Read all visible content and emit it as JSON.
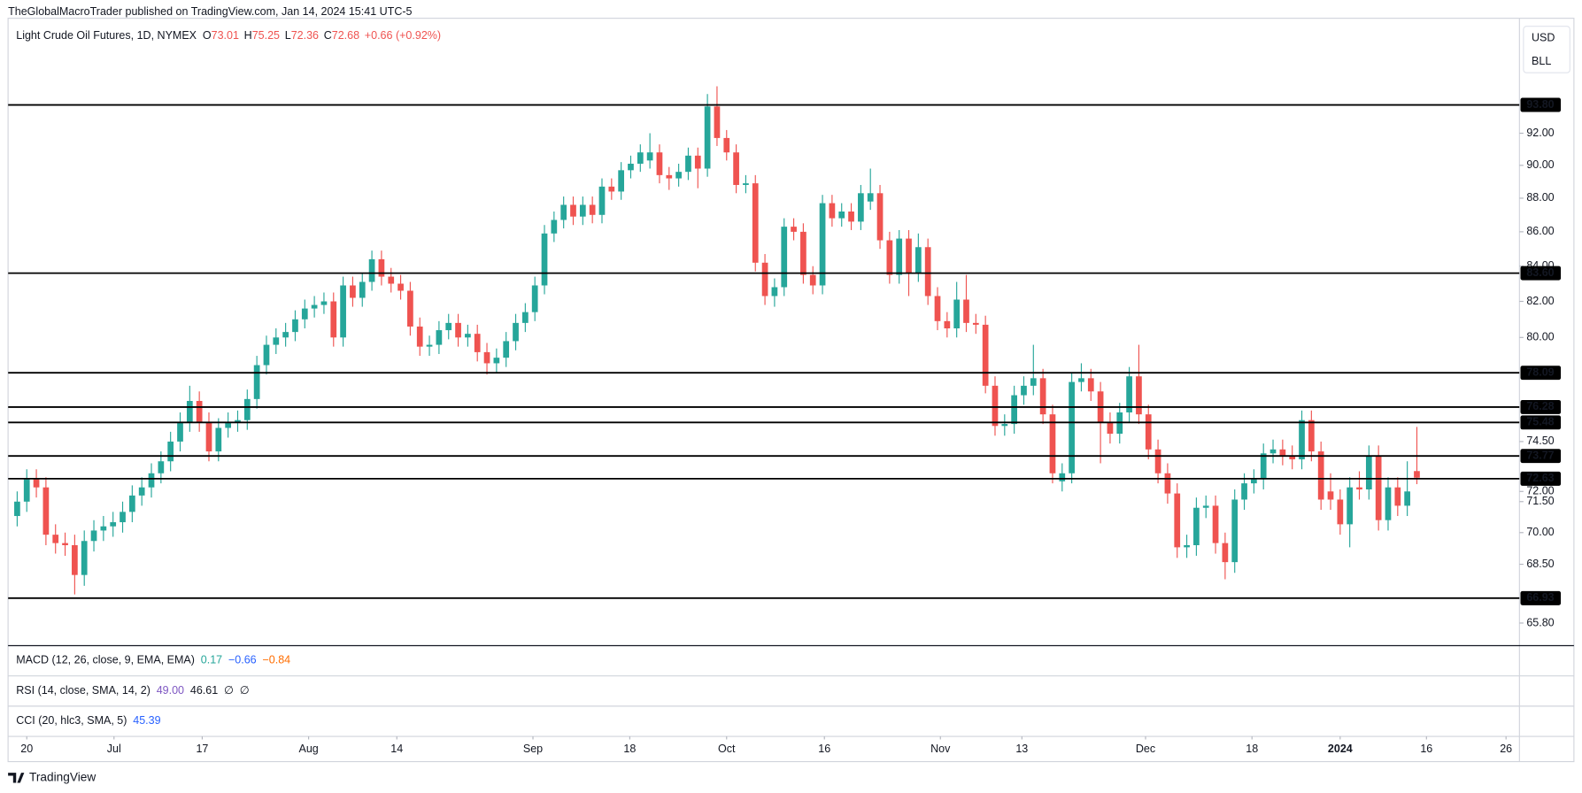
{
  "header": "TheGlobalMacroTrader published on TradingView.com, Jan 14, 2024 15:41 UTC-5",
  "legend": {
    "symbol": "Light Crude Oil Futures, 1D, NYMEX",
    "ohlc": [
      {
        "key": "O",
        "value": "73.01"
      },
      {
        "key": "H",
        "value": "75.25"
      },
      {
        "key": "L",
        "value": "72.36"
      },
      {
        "key": "C",
        "value": "72.68"
      }
    ],
    "change": "+0.66 (+0.92%)"
  },
  "axis_buttons": [
    "USD",
    "BLL"
  ],
  "indicators": [
    {
      "name": "MACD (12, 26, close, 9, EMA, EMA)",
      "values": [
        {
          "text": "0.17",
          "color": "#26a69a"
        },
        {
          "text": "−0.66",
          "color": "#2962ff"
        },
        {
          "text": "−0.84",
          "color": "#ff6d00"
        }
      ]
    },
    {
      "name": "RSI (14, close, SMA, 14, 2)",
      "values": [
        {
          "text": "49.00",
          "color": "#7e57c2"
        },
        {
          "text": "46.61",
          "color": "#131722"
        },
        {
          "text": "∅",
          "color": "#131722"
        },
        {
          "text": "∅",
          "color": "#131722"
        }
      ]
    },
    {
      "name": "CCI (20, hlc3, SMA, 5)",
      "values": [
        {
          "text": "45.39",
          "color": "#2962ff"
        }
      ]
    }
  ],
  "footer": "TradingView",
  "chart_data": {
    "type": "candlestick",
    "log_scale": true,
    "up_color": "#26a69a",
    "down_color": "#ef5350",
    "line_color": "#000000",
    "xlim": [
      -0.95,
      156.7
    ],
    "xticks": [
      {
        "value": 1,
        "label": "20"
      },
      {
        "value": 10.1,
        "label": "Jul"
      },
      {
        "value": 19.3,
        "label": "17"
      },
      {
        "value": 30.4,
        "label": "Aug"
      },
      {
        "value": 39.6,
        "label": "14"
      },
      {
        "value": 53.8,
        "label": "Sep"
      },
      {
        "value": 63.9,
        "label": "18"
      },
      {
        "value": 74,
        "label": "Oct"
      },
      {
        "value": 84.2,
        "label": "16"
      },
      {
        "value": 96.3,
        "label": "Nov"
      },
      {
        "value": 104.8,
        "label": "13"
      },
      {
        "value": 117.7,
        "label": "Dec"
      },
      {
        "value": 128.8,
        "label": "18"
      },
      {
        "value": 138,
        "label": "2024"
      },
      {
        "value": 147,
        "label": "16"
      },
      {
        "value": 155.3,
        "label": "26"
      }
    ],
    "ylim": [
      64.79,
      99.53
    ],
    "yticks": [
      {
        "value": 65.8,
        "label": "65.80"
      },
      {
        "value": 68.5,
        "label": "68.50"
      },
      {
        "value": 70,
        "label": "70.00"
      },
      {
        "value": 71.5,
        "label": "71.50"
      },
      {
        "value": 72,
        "label": "72.00"
      },
      {
        "value": 74.5,
        "label": "74.50"
      },
      {
        "value": 80,
        "label": "80.00"
      },
      {
        "value": 82,
        "label": "82.00"
      },
      {
        "value": 84,
        "label": "84.00"
      },
      {
        "value": 86,
        "label": "86.00"
      },
      {
        "value": 88,
        "label": "88.00"
      },
      {
        "value": 90,
        "label": "90.00"
      },
      {
        "value": 92,
        "label": "92.00"
      }
    ],
    "hlines": [
      {
        "value": 93.8,
        "label": "93.80"
      },
      {
        "value": 83.6,
        "label": "83.60"
      },
      {
        "value": 78.09,
        "label": "78.09"
      },
      {
        "value": 76.28,
        "label": "76.28"
      },
      {
        "value": 75.48,
        "label": "75.48"
      },
      {
        "value": 73.77,
        "label": "73.77"
      },
      {
        "value": 72.63,
        "label": "72.63"
      },
      {
        "value": 66.93,
        "label": "66.93"
      }
    ],
    "open": [
      70.8,
      71.5,
      72.6,
      72.2,
      69.9,
      69.5,
      69.4,
      68.0,
      69.6,
      70.1,
      70.3,
      70.5,
      71.0,
      71.8,
      72.2,
      72.9,
      73.5,
      74.5,
      75.5,
      76.6,
      75.5,
      74.0,
      75.2,
      75.5,
      75.6,
      76.7,
      78.5,
      79.6,
      80.0,
      80.3,
      81.0,
      81.6,
      81.8,
      82.0,
      80.0,
      82.9,
      82.2,
      83.1,
      84.4,
      83.4,
      83.0,
      82.6,
      80.6,
      79.5,
      79.6,
      80.4,
      80.8,
      80.0,
      80.2,
      79.2,
      78.6,
      78.9,
      79.8,
      80.8,
      81.4,
      82.9,
      85.9,
      86.7,
      87.6,
      86.9,
      87.6,
      87.0,
      88.7,
      88.4,
      89.7,
      90.1,
      90.3,
      90.8,
      89.4,
      89.2,
      89.6,
      90.6,
      89.8,
      93.7,
      91.7,
      90.8,
      88.8,
      88.9,
      84.2,
      82.3,
      82.8,
      86.3,
      86.0,
      83.5,
      82.9,
      87.7,
      86.8,
      87.2,
      86.6,
      87.8,
      88.3,
      85.5,
      83.5,
      85.6,
      83.6,
      85.1,
      82.3,
      80.9,
      80.5,
      82.1,
      80.8,
      80.7,
      77.4,
      75.3,
      75.4,
      76.9,
      77.4,
      77.8,
      75.9,
      72.5,
      72.9,
      77.6,
      77.8,
      77.1,
      75.5,
      74.9,
      76.0,
      77.9,
      75.9,
      74.1,
      72.9,
      71.9,
      69.3,
      69.4,
      71.2,
      71.3,
      69.5,
      68.6,
      71.6,
      72.4,
      72.6,
      73.9,
      74.1,
      73.8,
      73.6,
      75.6,
      74.0,
      72.0,
      71.6,
      70.4,
      72.2,
      72.1,
      73.8,
      70.6,
      72.2,
      71.3,
      73.01
    ],
    "high": [
      72.0,
      73.1,
      73.1,
      72.7,
      70.4,
      70.0,
      69.9,
      70.1,
      70.6,
      70.8,
      71.0,
      71.5,
      72.3,
      72.7,
      73.4,
      74.0,
      75.0,
      76.0,
      77.4,
      77.1,
      76.0,
      75.7,
      76.0,
      76.1,
      77.2,
      79.0,
      80.1,
      80.5,
      80.8,
      81.5,
      82.1,
      82.3,
      82.5,
      82.5,
      83.4,
      83.4,
      83.6,
      84.9,
      84.9,
      83.9,
      83.5,
      83.1,
      81.1,
      80.1,
      80.9,
      81.3,
      81.3,
      80.7,
      80.7,
      79.7,
      79.4,
      80.3,
      81.3,
      81.9,
      83.4,
      86.4,
      87.2,
      88.1,
      88.1,
      88.1,
      88.1,
      89.2,
      89.2,
      90.2,
      90.6,
      91.3,
      92.0,
      91.3,
      89.9,
      90.1,
      91.1,
      91.1,
      94.5,
      95.0,
      92.2,
      91.3,
      89.4,
      89.4,
      84.7,
      83.3,
      86.8,
      86.8,
      86.5,
      84.0,
      88.2,
      88.2,
      87.7,
      87.7,
      88.8,
      89.8,
      88.8,
      86.0,
      86.1,
      86.1,
      85.9,
      85.6,
      82.8,
      81.4,
      83.1,
      83.5,
      81.3,
      81.2,
      77.9,
      75.9,
      77.4,
      77.9,
      79.6,
      78.3,
      76.4,
      73.4,
      78.1,
      78.6,
      78.3,
      77.6,
      76.0,
      76.5,
      78.4,
      79.6,
      76.4,
      74.6,
      73.4,
      72.4,
      69.9,
      71.7,
      71.8,
      71.8,
      70.0,
      72.1,
      72.9,
      73.1,
      74.4,
      74.6,
      74.6,
      74.3,
      76.1,
      76.1,
      74.5,
      72.9,
      72.1,
      72.7,
      73.0,
      74.3,
      74.3,
      72.7,
      72.7,
      73.5,
      75.25
    ],
    "low": [
      70.3,
      71.0,
      71.7,
      69.4,
      69.0,
      68.9,
      67.1,
      67.5,
      69.1,
      69.6,
      69.8,
      70.0,
      70.5,
      71.3,
      71.7,
      72.4,
      73.0,
      74.0,
      75.0,
      75.0,
      73.5,
      73.5,
      74.7,
      75.0,
      75.1,
      76.2,
      78.0,
      79.1,
      79.5,
      79.8,
      80.5,
      81.1,
      81.3,
      79.5,
      79.5,
      81.7,
      81.7,
      82.6,
      82.9,
      82.5,
      82.1,
      80.1,
      79.0,
      79.0,
      79.1,
      79.9,
      79.5,
      79.5,
      78.7,
      78.0,
      78.1,
      78.4,
      79.3,
      80.3,
      80.9,
      82.4,
      85.4,
      86.2,
      86.4,
      86.4,
      86.5,
      86.5,
      87.9,
      87.9,
      89.2,
      89.6,
      89.8,
      88.9,
      88.5,
      88.7,
      89.1,
      88.6,
      89.3,
      91.2,
      90.3,
      88.3,
      88.3,
      83.7,
      81.8,
      81.7,
      82.3,
      85.5,
      83.0,
      82.4,
      82.4,
      86.3,
      86.3,
      86.1,
      86.1,
      87.3,
      85.0,
      83.0,
      83.0,
      82.3,
      83.1,
      81.8,
      80.4,
      80.0,
      80.0,
      80.3,
      80.2,
      77.0,
      74.8,
      74.8,
      74.9,
      76.4,
      76.9,
      75.4,
      72.4,
      72.0,
      72.4,
      77.1,
      76.6,
      73.4,
      74.4,
      74.4,
      75.5,
      75.4,
      73.6,
      72.4,
      71.4,
      68.8,
      68.8,
      68.9,
      70.7,
      69.0,
      67.8,
      68.1,
      71.1,
      71.9,
      72.1,
      73.4,
      73.3,
      73.1,
      73.1,
      73.5,
      71.1,
      71.1,
      69.9,
      69.3,
      71.6,
      71.6,
      70.1,
      70.1,
      70.8,
      70.8,
      72.36
    ],
    "close": [
      71.5,
      72.6,
      72.2,
      69.9,
      69.5,
      69.4,
      68.0,
      69.6,
      70.1,
      70.3,
      70.5,
      71.0,
      71.8,
      72.2,
      72.9,
      73.5,
      74.5,
      75.5,
      76.6,
      75.5,
      74.0,
      75.2,
      75.5,
      75.6,
      76.7,
      78.5,
      79.6,
      80.0,
      80.3,
      81.0,
      81.6,
      81.8,
      82.0,
      80.0,
      82.9,
      82.2,
      83.1,
      84.4,
      83.4,
      83.0,
      82.6,
      80.6,
      79.5,
      79.6,
      80.4,
      80.8,
      80.0,
      80.2,
      79.2,
      78.6,
      78.9,
      79.8,
      80.8,
      81.4,
      82.9,
      85.9,
      86.7,
      87.6,
      86.9,
      87.6,
      87.0,
      88.7,
      88.4,
      89.7,
      90.1,
      90.8,
      90.8,
      89.4,
      89.2,
      89.6,
      90.6,
      89.8,
      93.7,
      91.7,
      90.8,
      88.8,
      88.9,
      84.2,
      82.3,
      82.8,
      86.3,
      86.0,
      83.5,
      82.9,
      87.7,
      86.8,
      87.2,
      86.6,
      88.3,
      88.3,
      85.5,
      83.5,
      85.6,
      83.6,
      85.1,
      82.3,
      80.9,
      80.5,
      82.1,
      80.8,
      80.7,
      77.4,
      75.3,
      75.4,
      76.9,
      77.4,
      77.8,
      75.9,
      72.9,
      72.9,
      77.6,
      77.8,
      77.1,
      75.5,
      74.9,
      76.0,
      77.9,
      75.9,
      74.1,
      72.9,
      71.9,
      69.3,
      69.4,
      71.2,
      71.3,
      69.5,
      68.6,
      71.6,
      72.4,
      72.6,
      73.9,
      74.1,
      73.8,
      73.6,
      75.6,
      74.0,
      71.6,
      71.6,
      70.4,
      72.2,
      72.1,
      73.8,
      70.6,
      72.2,
      71.3,
      72.0,
      72.68
    ]
  }
}
